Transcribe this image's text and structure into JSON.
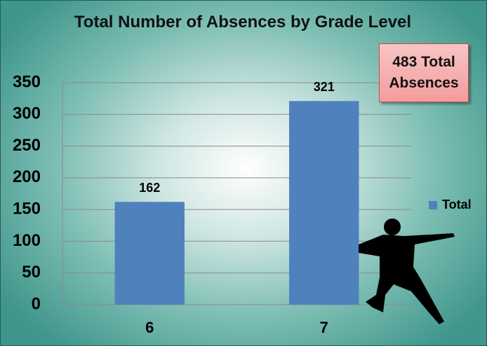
{
  "chart_data": {
    "type": "bar",
    "title": "Total Number of Absences by Grade Level",
    "categories": [
      "6",
      "7"
    ],
    "series": [
      {
        "name": "Total",
        "color": "#4f81bd",
        "values": [
          162,
          321
        ]
      }
    ],
    "ylim": [
      0,
      350
    ],
    "yticks": [
      0,
      50,
      100,
      150,
      200,
      250,
      300,
      350
    ],
    "grid": true,
    "legend": "right",
    "annotation": "483 Total Absences"
  }
}
